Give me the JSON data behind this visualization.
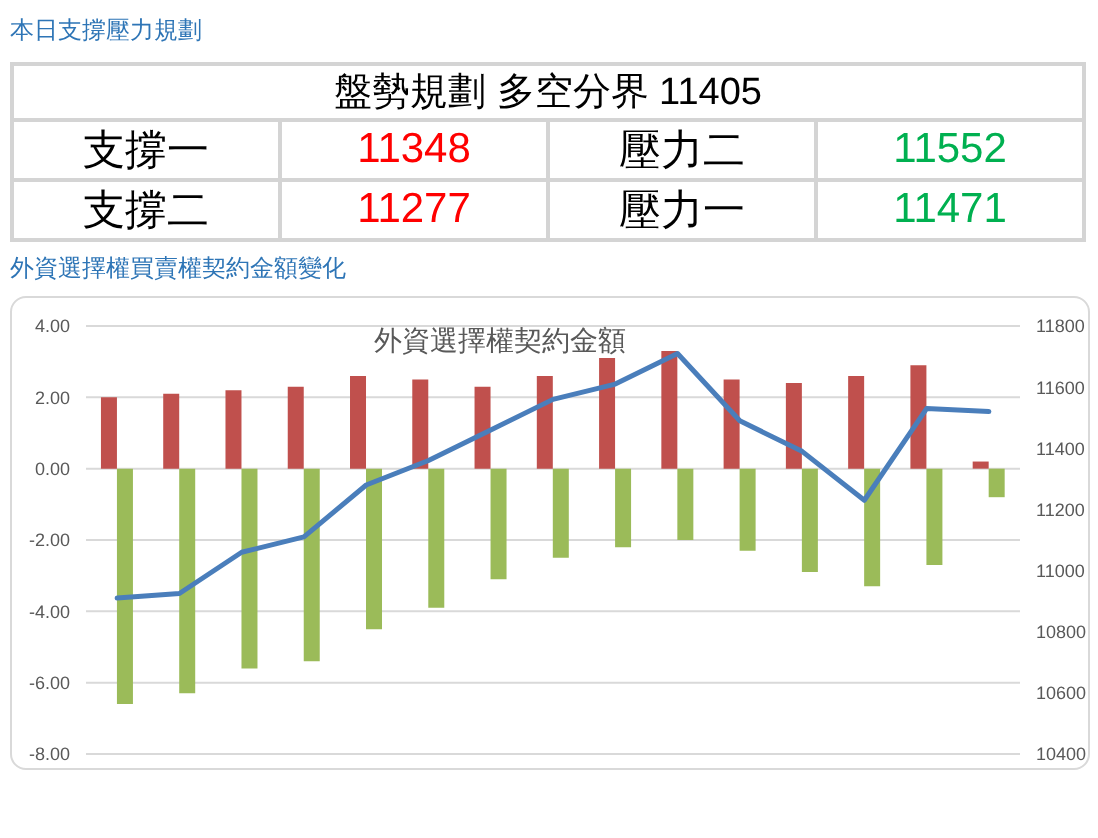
{
  "chart_data": [
    {
      "type": "other",
      "title": "本日支撐壓力規劃",
      "annotations": [
        "盤勢規劃 多空分界 11405",
        "支撐一",
        "11348",
        "壓力二",
        "11552",
        "支撐二",
        "11277",
        "壓力一",
        "11471"
      ]
    },
    {
      "type": "bar",
      "title": "外資選擇權買賣權契約金額變化",
      "subtitle": "外資選擇權契約金額",
      "categories": [
        null,
        null,
        null,
        null,
        null,
        null,
        null,
        null,
        null,
        null,
        null,
        null,
        null,
        null,
        null
      ],
      "series": [
        {
          "color": "#c0504d",
          "values": [
            2.0,
            2.1,
            2.2,
            2.3,
            2.6,
            2.5,
            2.3,
            2.6,
            3.1,
            3.3,
            2.5,
            2.4,
            2.6,
            2.9,
            0.2
          ]
        },
        {
          "color": "#9bbb59",
          "values": [
            -6.6,
            -6.3,
            -5.6,
            -5.4,
            -4.5,
            -3.9,
            -3.1,
            -2.5,
            -2.2,
            -2.0,
            -2.3,
            -2.9,
            -3.3,
            -2.7,
            -0.8
          ]
        },
        {
          "type": "line",
          "axis": "y2",
          "color": "#4a7ebb",
          "values": [
            10910,
            10925,
            11060,
            11110,
            11280,
            11360,
            11460,
            11560,
            11610,
            11710,
            11490,
            11390,
            11230,
            11530,
            11520
          ]
        }
      ],
      "ylim": [
        -8,
        4
      ],
      "yticks": [
        {
          "value": -8,
          "label": "-8.00"
        },
        {
          "value": -6,
          "label": "-6.00"
        },
        {
          "value": -4,
          "label": "-4.00"
        },
        {
          "value": -2,
          "label": "-2.00"
        },
        {
          "value": 0,
          "label": "0.00"
        },
        {
          "value": 2,
          "label": "2.00"
        },
        {
          "value": 4,
          "label": "4.00"
        }
      ],
      "y2lim": [
        10400,
        11800
      ],
      "y2ticks": [
        10400,
        10600,
        10800,
        11000,
        11200,
        11400,
        11600,
        11800
      ],
      "grid": "y",
      "tick_labels": "y",
      "marker": "none"
    }
  ]
}
